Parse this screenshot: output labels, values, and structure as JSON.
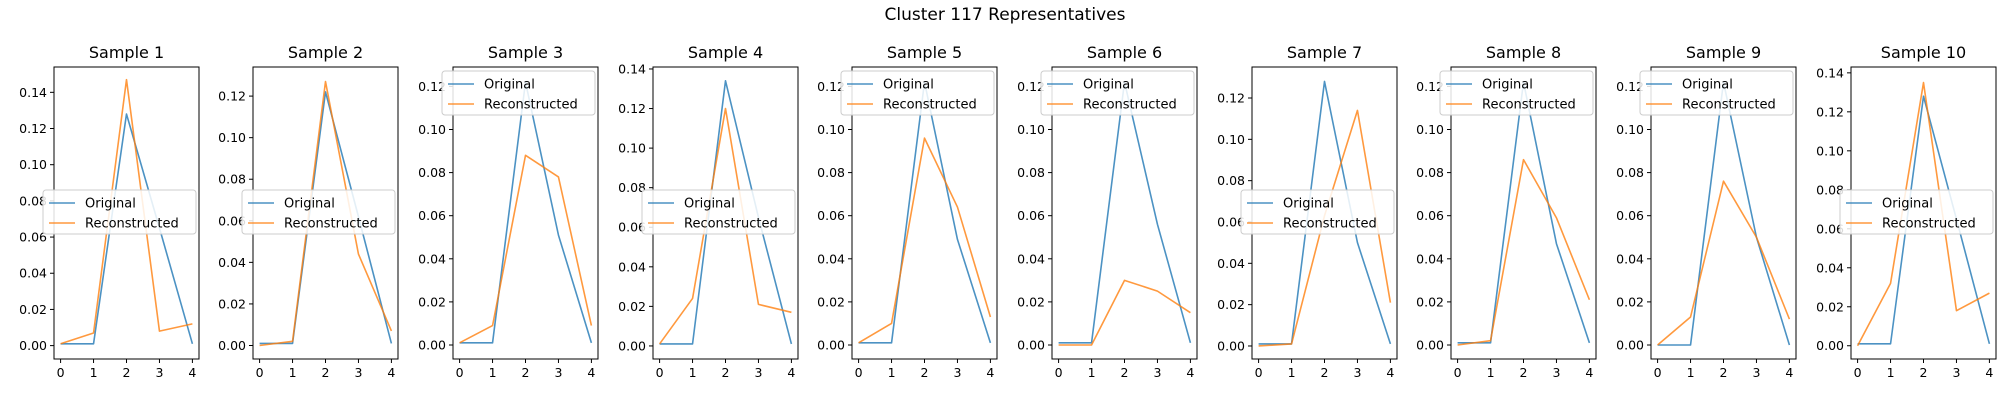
{
  "figure": {
    "title": "Cluster 117 Representatives"
  },
  "colors": {
    "original": "#1f77b4",
    "reconstructed": "#ff7f0e"
  },
  "legend_labels": {
    "original": "Original",
    "reconstructed": "Reconstructed"
  },
  "chart_data": [
    {
      "type": "line",
      "title": "Sample 1",
      "x": [
        0,
        1,
        2,
        3,
        4
      ],
      "xticks": [
        0,
        1,
        2,
        3,
        4
      ],
      "ylim": [
        -0.0074,
        0.154
      ],
      "yticks": [
        0.0,
        0.02,
        0.04,
        0.06,
        0.08,
        0.1,
        0.12,
        0.14
      ],
      "ytick_labels": [
        "0.00",
        "0.02",
        "0.04",
        "0.06",
        "0.08",
        "0.10",
        "0.12",
        "0.14"
      ],
      "series": [
        {
          "name": "Original",
          "values": [
            0.001,
            0.001,
            0.128,
            0.065,
            0.001
          ]
        },
        {
          "name": "Reconstructed",
          "values": [
            0.001,
            0.007,
            0.147,
            0.008,
            0.012
          ]
        }
      ],
      "legend": "center-left"
    },
    {
      "type": "line",
      "title": "Sample 2",
      "x": [
        0,
        1,
        2,
        3,
        4
      ],
      "xticks": [
        0,
        1,
        2,
        3,
        4
      ],
      "ylim": [
        -0.0065,
        0.134
      ],
      "yticks": [
        0.0,
        0.02,
        0.04,
        0.06,
        0.08,
        0.1,
        0.12
      ],
      "ytick_labels": [
        "0.00",
        "0.02",
        "0.04",
        "0.06",
        "0.08",
        "0.10",
        "0.12"
      ],
      "series": [
        {
          "name": "Original",
          "values": [
            0.001,
            0.001,
            0.122,
            0.062,
            0.001
          ]
        },
        {
          "name": "Reconstructed",
          "values": [
            0.0,
            0.002,
            0.127,
            0.044,
            0.007
          ]
        }
      ],
      "legend": "center-left"
    },
    {
      "type": "line",
      "title": "Sample 3",
      "x": [
        0,
        1,
        2,
        3,
        4
      ],
      "xticks": [
        0,
        1,
        2,
        3,
        4
      ],
      "ylim": [
        -0.0065,
        0.129
      ],
      "yticks": [
        0.0,
        0.02,
        0.04,
        0.06,
        0.08,
        0.1,
        0.12
      ],
      "ytick_labels": [
        "0.00",
        "0.02",
        "0.04",
        "0.06",
        "0.08",
        "0.10",
        "0.12"
      ],
      "series": [
        {
          "name": "Original",
          "values": [
            0.001,
            0.001,
            0.122,
            0.051,
            0.001
          ]
        },
        {
          "name": "Reconstructed",
          "values": [
            0.001,
            0.009,
            0.088,
            0.078,
            0.009
          ]
        }
      ],
      "legend": "upper-left"
    },
    {
      "type": "line",
      "title": "Sample 4",
      "x": [
        0,
        1,
        2,
        3,
        4
      ],
      "xticks": [
        0,
        1,
        2,
        3,
        4
      ],
      "ylim": [
        -0.0066,
        0.141
      ],
      "yticks": [
        0.0,
        0.02,
        0.04,
        0.06,
        0.08,
        0.1,
        0.12,
        0.14
      ],
      "ytick_labels": [
        "0.00",
        "0.02",
        "0.04",
        "0.06",
        "0.08",
        "0.10",
        "0.12",
        "0.14"
      ],
      "series": [
        {
          "name": "Original",
          "values": [
            0.001,
            0.001,
            0.134,
            0.065,
            0.001
          ]
        },
        {
          "name": "Reconstructed",
          "values": [
            0.001,
            0.024,
            0.12,
            0.021,
            0.017
          ]
        }
      ],
      "legend": "center-left"
    },
    {
      "type": "line",
      "title": "Sample 5",
      "x": [
        0,
        1,
        2,
        3,
        4
      ],
      "xticks": [
        0,
        1,
        2,
        3,
        4
      ],
      "ylim": [
        -0.0065,
        0.129
      ],
      "yticks": [
        0.0,
        0.02,
        0.04,
        0.06,
        0.08,
        0.1,
        0.12
      ],
      "ytick_labels": [
        "0.00",
        "0.02",
        "0.04",
        "0.06",
        "0.08",
        "0.10",
        "0.12"
      ],
      "series": [
        {
          "name": "Original",
          "values": [
            0.001,
            0.001,
            0.122,
            0.049,
            0.001
          ]
        },
        {
          "name": "Reconstructed",
          "values": [
            0.001,
            0.01,
            0.096,
            0.064,
            0.013
          ]
        }
      ],
      "legend": "upper-left"
    },
    {
      "type": "line",
      "title": "Sample 6",
      "x": [
        0,
        1,
        2,
        3,
        4
      ],
      "xticks": [
        0,
        1,
        2,
        3,
        4
      ],
      "ylim": [
        -0.0065,
        0.129
      ],
      "yticks": [
        0.0,
        0.02,
        0.04,
        0.06,
        0.08,
        0.1,
        0.12
      ],
      "ytick_labels": [
        "0.00",
        "0.02",
        "0.04",
        "0.06",
        "0.08",
        "0.10",
        "0.12"
      ],
      "series": [
        {
          "name": "Original",
          "values": [
            0.001,
            0.001,
            0.122,
            0.056,
            0.001
          ]
        },
        {
          "name": "Reconstructed",
          "values": [
            0.0,
            0.0,
            0.03,
            0.025,
            0.015
          ]
        }
      ],
      "legend": "upper-left"
    },
    {
      "type": "line",
      "title": "Sample 7",
      "x": [
        0,
        1,
        2,
        3,
        4
      ],
      "xticks": [
        0,
        1,
        2,
        3,
        4
      ],
      "ylim": [
        -0.0063,
        0.135
      ],
      "yticks": [
        0.0,
        0.02,
        0.04,
        0.06,
        0.08,
        0.1,
        0.12
      ],
      "ytick_labels": [
        "0.00",
        "0.02",
        "0.04",
        "0.06",
        "0.08",
        "0.10",
        "0.12"
      ],
      "series": [
        {
          "name": "Original",
          "values": [
            0.001,
            0.001,
            0.128,
            0.05,
            0.001
          ]
        },
        {
          "name": "Reconstructed",
          "values": [
            0.0,
            0.001,
            0.063,
            0.114,
            0.021
          ]
        }
      ],
      "legend": "center-left"
    },
    {
      "type": "line",
      "title": "Sample 8",
      "x": [
        0,
        1,
        2,
        3,
        4
      ],
      "xticks": [
        0,
        1,
        2,
        3,
        4
      ],
      "ylim": [
        -0.0065,
        0.129
      ],
      "yticks": [
        0.0,
        0.02,
        0.04,
        0.06,
        0.08,
        0.1,
        0.12
      ],
      "ytick_labels": [
        "0.00",
        "0.02",
        "0.04",
        "0.06",
        "0.08",
        "0.10",
        "0.12"
      ],
      "series": [
        {
          "name": "Original",
          "values": [
            0.001,
            0.001,
            0.122,
            0.047,
            0.001
          ]
        },
        {
          "name": "Reconstructed",
          "values": [
            0.0,
            0.002,
            0.086,
            0.059,
            0.021
          ]
        }
      ],
      "legend": "upper-left"
    },
    {
      "type": "line",
      "title": "Sample 9",
      "x": [
        0,
        1,
        2,
        3,
        4
      ],
      "xticks": [
        0,
        1,
        2,
        3,
        4
      ],
      "ylim": [
        -0.0065,
        0.129
      ],
      "yticks": [
        0.0,
        0.02,
        0.04,
        0.06,
        0.08,
        0.1,
        0.12
      ],
      "ytick_labels": [
        "0.00",
        "0.02",
        "0.04",
        "0.06",
        "0.08",
        "0.10",
        "0.12"
      ],
      "series": [
        {
          "name": "Original",
          "values": [
            0.0,
            0.0,
            0.122,
            0.05,
            0.0
          ]
        },
        {
          "name": "Reconstructed",
          "values": [
            0.0,
            0.013,
            0.076,
            0.05,
            0.012
          ]
        }
      ],
      "legend": "upper-left"
    },
    {
      "type": "line",
      "title": "Sample 10",
      "x": [
        0,
        1,
        2,
        3,
        4
      ],
      "xticks": [
        0,
        1,
        2,
        3,
        4
      ],
      "ylim": [
        -0.0068,
        0.143
      ],
      "yticks": [
        0.0,
        0.02,
        0.04,
        0.06,
        0.08,
        0.1,
        0.12,
        0.14
      ],
      "ytick_labels": [
        "0.00",
        "0.02",
        "0.04",
        "0.06",
        "0.08",
        "0.10",
        "0.12",
        "0.14"
      ],
      "series": [
        {
          "name": "Original",
          "values": [
            0.001,
            0.001,
            0.128,
            0.065,
            0.001
          ]
        },
        {
          "name": "Reconstructed",
          "values": [
            0.0,
            0.032,
            0.135,
            0.018,
            0.027
          ]
        }
      ],
      "legend": "center-left"
    }
  ]
}
